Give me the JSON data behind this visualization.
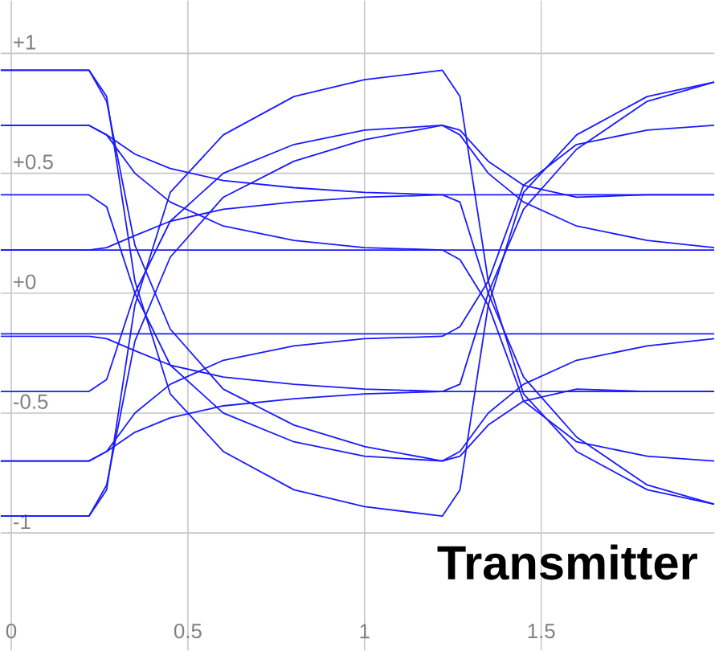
{
  "chart_data": {
    "type": "line",
    "annotations": [
      "Transmitter"
    ],
    "x": [
      -0.03,
      0.22,
      0.27,
      0.35,
      0.45,
      0.6,
      0.8,
      1.0,
      1.22,
      1.27,
      1.35,
      1.45,
      1.6,
      1.8,
      1.99
    ],
    "series": [
      {
        "color": "#1a1aff",
        "values": [
          0.93,
          0.93,
          0.82,
          0.05,
          -0.42,
          -0.66,
          -0.82,
          -0.89,
          -0.93,
          -0.82,
          -0.05,
          0.42,
          0.66,
          0.82,
          0.88
        ]
      },
      {
        "color": "#1a1aff",
        "values": [
          -0.93,
          -0.93,
          -0.82,
          -0.05,
          0.42,
          0.66,
          0.82,
          0.89,
          0.93,
          0.82,
          0.05,
          -0.42,
          -0.66,
          -0.82,
          -0.88
        ]
      },
      {
        "color": "#1a1aff",
        "values": [
          0.7,
          0.7,
          0.66,
          0.5,
          0.38,
          0.28,
          0.22,
          0.19,
          0.18,
          0.14,
          -0.05,
          -0.45,
          -0.62,
          -0.68,
          -0.7
        ]
      },
      {
        "color": "#1a1aff",
        "values": [
          -0.7,
          -0.7,
          -0.66,
          -0.5,
          -0.38,
          -0.28,
          -0.22,
          -0.19,
          -0.18,
          -0.14,
          0.05,
          0.45,
          0.62,
          0.68,
          0.7
        ]
      },
      {
        "color": "#1a1aff",
        "values": [
          0.7,
          0.7,
          0.66,
          0.58,
          0.52,
          0.47,
          0.44,
          0.42,
          0.41,
          0.38,
          0.0,
          -0.35,
          -0.6,
          -0.8,
          -0.88
        ]
      },
      {
        "color": "#1a1aff",
        "values": [
          -0.7,
          -0.7,
          -0.66,
          -0.58,
          -0.52,
          -0.47,
          -0.44,
          -0.42,
          -0.41,
          -0.38,
          0.0,
          0.35,
          0.6,
          0.8,
          0.88
        ]
      },
      {
        "color": "#1a1aff",
        "values": [
          0.41,
          0.41,
          0.36,
          0.0,
          -0.3,
          -0.5,
          -0.62,
          -0.68,
          -0.7,
          -0.66,
          -0.5,
          -0.38,
          -0.28,
          -0.22,
          -0.19
        ]
      },
      {
        "color": "#1a1aff",
        "values": [
          -0.41,
          -0.41,
          -0.36,
          0.0,
          0.3,
          0.5,
          0.62,
          0.68,
          0.7,
          0.66,
          0.5,
          0.38,
          0.28,
          0.22,
          0.19
        ]
      },
      {
        "color": "#1a1aff",
        "values": [
          0.18,
          0.18,
          0.19,
          0.24,
          0.3,
          0.35,
          0.38,
          0.4,
          0.41,
          0.41,
          0.41,
          0.41,
          0.41,
          0.41,
          0.41
        ]
      },
      {
        "color": "#1a1aff",
        "values": [
          -0.18,
          -0.18,
          -0.19,
          -0.24,
          -0.3,
          -0.35,
          -0.38,
          -0.4,
          -0.41,
          -0.41,
          -0.41,
          -0.41,
          -0.41,
          -0.41,
          -0.41
        ]
      },
      {
        "color": "#1a1aff",
        "values": [
          0.18,
          0.18,
          0.18,
          0.18,
          0.18,
          0.18,
          0.18,
          0.18,
          0.18,
          0.18,
          0.18,
          0.18,
          0.18,
          0.18,
          0.18
        ]
      },
      {
        "color": "#1a1aff",
        "values": [
          -0.17,
          -0.17,
          -0.17,
          -0.17,
          -0.17,
          -0.17,
          -0.17,
          -0.17,
          -0.17,
          -0.17,
          -0.17,
          -0.17,
          -0.17,
          -0.17,
          -0.17
        ]
      },
      {
        "color": "#1a1aff",
        "values": [
          -0.93,
          -0.93,
          -0.8,
          -0.2,
          0.15,
          0.4,
          0.55,
          0.64,
          0.7,
          0.68,
          0.55,
          0.45,
          0.4,
          0.41,
          0.41
        ]
      },
      {
        "color": "#1a1aff",
        "values": [
          0.93,
          0.93,
          0.8,
          0.2,
          -0.15,
          -0.4,
          -0.55,
          -0.64,
          -0.7,
          -0.68,
          -0.55,
          -0.45,
          -0.4,
          -0.41,
          -0.41
        ]
      }
    ],
    "xlim": [
      -0.03,
      1.99
    ],
    "ylim": [
      -1.49,
      1.22
    ],
    "xticks": [
      {
        "value": 0,
        "label": "0"
      },
      0.5,
      1,
      1.5
    ],
    "yticks": [
      {
        "value": 1,
        "label": "+1"
      },
      {
        "value": 0.5,
        "label": "+0.5"
      },
      {
        "value": 0,
        "label": "+0"
      },
      -0.5,
      -1
    ],
    "grid": true
  }
}
